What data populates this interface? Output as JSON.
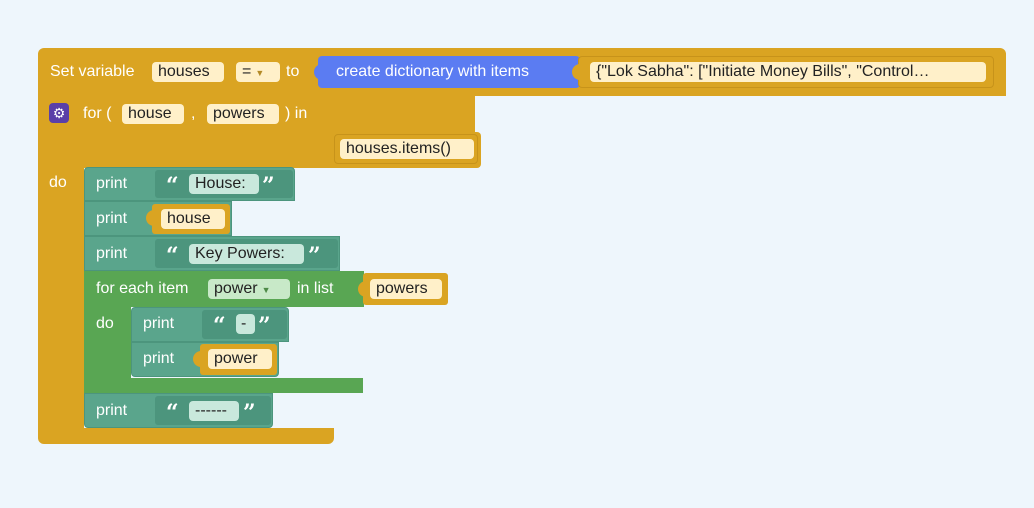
{
  "set_block": {
    "label_set": "Set variable",
    "variable": "houses",
    "operator": "=",
    "label_to": "to",
    "create_label": "create dictionary with items",
    "dict_value": "{\"Lok Sabha\": [\"Initiate Money Bills\", \"Control…"
  },
  "for_block": {
    "label_for": "for (",
    "var1": "house",
    "comma": ",",
    "var2": "powers",
    "label_in": ") in",
    "iterable": "houses.items()",
    "label_do": "do"
  },
  "prints": {
    "p1": {
      "label": "print",
      "value": "House:"
    },
    "p2": {
      "label": "print",
      "value": "house"
    },
    "p3": {
      "label": "print",
      "value": "Key Powers:"
    },
    "p4": {
      "label": "print",
      "value": "-"
    },
    "p5": {
      "label": "print",
      "value": "power"
    },
    "p6": {
      "label": "print",
      "value": "------"
    }
  },
  "foreach_block": {
    "label_each": "for each item",
    "variable": "power",
    "label_list": "in list",
    "list_value": "powers",
    "label_do": "do"
  },
  "quote_open": "“",
  "quote_close": "”",
  "colors": {
    "background": "#eef6fc",
    "variables_gold": "#daa422",
    "print_teal": "#5aa58c",
    "loop_green": "#59a653",
    "dict_blue": "#5b7cf2"
  }
}
